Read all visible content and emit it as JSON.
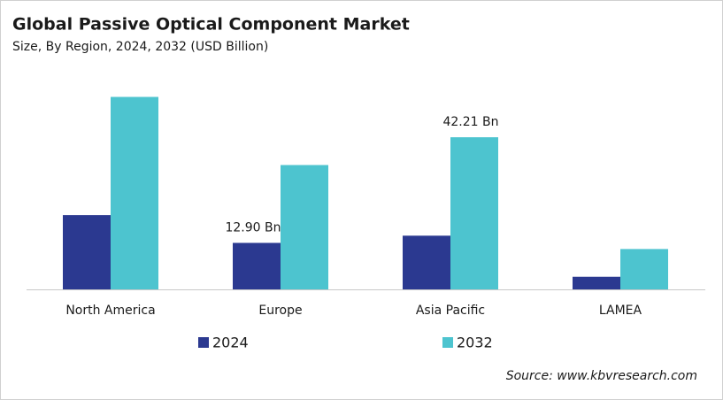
{
  "chart_data": {
    "type": "bar",
    "title": "Global Passive Optical Component Market",
    "subtitle": "Size, By Region, 2024, 2032 (USD Billion)",
    "source": "Source: www.kbvresearch.com",
    "categories": [
      "North America",
      "Europe",
      "Asia Pacific",
      "LAMEA"
    ],
    "series": [
      {
        "name": "2024",
        "color": "#2b3990",
        "values": [
          20.6,
          12.9,
          14.9,
          3.5
        ],
        "value_labels": [
          null,
          "12.90 Bn",
          null,
          null
        ]
      },
      {
        "name": "2032",
        "color": "#4dc4cf",
        "values": [
          53.4,
          34.5,
          42.21,
          11.2
        ],
        "value_labels": [
          null,
          null,
          "42.21 Bn",
          null
        ]
      }
    ],
    "ylim": [
      0,
      55
    ]
  }
}
